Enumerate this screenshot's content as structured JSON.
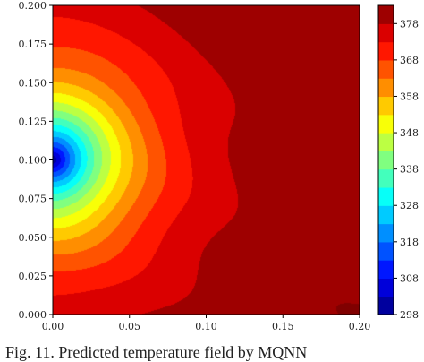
{
  "chart_data": {
    "type": "heatmap",
    "title": "",
    "xlabel": "",
    "ylabel": "",
    "xlim": [
      0.0,
      0.2
    ],
    "ylim": [
      0.0,
      0.2
    ],
    "x_ticks": [
      "0.00",
      "0.05",
      "0.10",
      "0.15",
      "0.20"
    ],
    "y_ticks": [
      "0.000",
      "0.025",
      "0.050",
      "0.075",
      "0.100",
      "0.125",
      "0.150",
      "0.175",
      "0.200"
    ],
    "colorbar": {
      "range": [
        298,
        383
      ],
      "ticks": [
        "298",
        "308",
        "318",
        "328",
        "338",
        "348",
        "358",
        "368",
        "378"
      ],
      "colormap": "jet"
    },
    "field": {
      "description": "temperature field",
      "cold_spot": {
        "x": 0.0,
        "y": 0.1,
        "value": 298
      },
      "right_edge_value": 383,
      "contour_step": 5
    },
    "grid": false,
    "legend": "none"
  },
  "caption": "Fig. 11.  Predicted temperature field by MQNN"
}
